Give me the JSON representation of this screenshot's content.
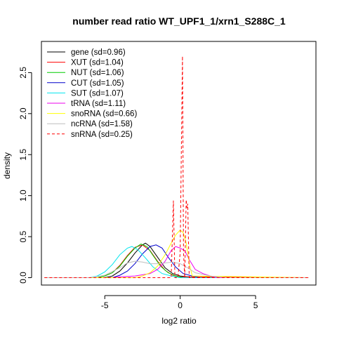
{
  "chart_data": {
    "type": "line",
    "title": "number read ratio WT_UPF1_1/xrn1_S288C_1",
    "xlabel": "log2 ratio",
    "ylabel": "density",
    "xlim": [
      -9.2,
      9.0
    ],
    "ylim": [
      -0.09,
      2.88
    ],
    "x_ticks": [
      -5,
      0,
      5
    ],
    "x_tick_labels": [
      "-5",
      "0",
      "5"
    ],
    "y_ticks": [
      0.0,
      0.5,
      1.0,
      1.5,
      2.0,
      2.5
    ],
    "y_tick_labels": [
      "0.0",
      "0.5",
      "1.0",
      "1.5",
      "2.0",
      "2.5"
    ],
    "grid": false,
    "legend_position": "top-left",
    "series": [
      {
        "name": "gene (sd=0.96)",
        "color": "#000000",
        "dash": false,
        "x": [
          -9,
          -5,
          -4.5,
          -4,
          -3.5,
          -3.0,
          -2.5,
          -2.3,
          -2.0,
          -1.5,
          -1.0,
          -0.5,
          0,
          0.5,
          1.0,
          8.5
        ],
        "y": [
          0,
          0,
          0.02,
          0.08,
          0.18,
          0.3,
          0.4,
          0.42,
          0.38,
          0.25,
          0.12,
          0.05,
          0.02,
          0.01,
          0,
          0
        ]
      },
      {
        "name": "XUT (sd=1.04)",
        "color": "#ff0000",
        "dash": false,
        "x": [
          -9,
          -5.5,
          -5,
          -4.5,
          -4,
          -3.5,
          -3.0,
          -2.5,
          -2.0,
          -1.5,
          -1.0,
          -0.5,
          0,
          8.5
        ],
        "y": [
          0,
          0,
          0.02,
          0.06,
          0.15,
          0.27,
          0.37,
          0.4,
          0.33,
          0.2,
          0.09,
          0.03,
          0.01,
          0
        ]
      },
      {
        "name": "NUT (sd=1.06)",
        "color": "#00cc00",
        "dash": false,
        "x": [
          -9,
          -5.5,
          -5,
          -4.5,
          -4,
          -3.5,
          -3.0,
          -2.6,
          -2.2,
          -1.8,
          -1.3,
          -0.8,
          -0.3,
          0.2,
          8.5
        ],
        "y": [
          0,
          0,
          0.02,
          0.06,
          0.14,
          0.26,
          0.36,
          0.41,
          0.38,
          0.27,
          0.14,
          0.06,
          0.02,
          0,
          0
        ]
      },
      {
        "name": "CUT (sd=1.05)",
        "color": "#0000cc",
        "dash": false,
        "x": [
          -9,
          -4.5,
          -4,
          -3.5,
          -3.0,
          -2.5,
          -2.0,
          -1.6,
          -1.2,
          -0.8,
          -0.3,
          0.2,
          0.8,
          1.3,
          8.5
        ],
        "y": [
          0,
          0,
          0.03,
          0.08,
          0.17,
          0.29,
          0.38,
          0.4,
          0.36,
          0.25,
          0.13,
          0.05,
          0.02,
          0,
          0
        ]
      },
      {
        "name": "SUT (sd=1.07)",
        "color": "#00e5ee",
        "dash": false,
        "x": [
          -9,
          -6,
          -5.5,
          -5,
          -4.5,
          -4,
          -3.5,
          -3.2,
          -2.8,
          -2.3,
          -1.8,
          -1.2,
          -0.6,
          0,
          8.5
        ],
        "y": [
          0,
          0,
          0.02,
          0.07,
          0.16,
          0.28,
          0.36,
          0.38,
          0.34,
          0.24,
          0.13,
          0.05,
          0.02,
          0,
          0
        ]
      },
      {
        "name": "tRNA (sd=1.11)",
        "color": "#ee00ee",
        "dash": false,
        "x": [
          -9,
          -4.5,
          -4,
          -3,
          -2,
          -1.5,
          -1.0,
          -0.6,
          -0.3,
          0,
          0.3,
          0.6,
          1.0,
          1.5,
          2.0,
          2.5,
          8.5
        ],
        "y": [
          0,
          0,
          0.01,
          0.02,
          0.05,
          0.1,
          0.2,
          0.33,
          0.38,
          0.36,
          0.33,
          0.22,
          0.1,
          0.05,
          0.02,
          0,
          0
        ]
      },
      {
        "name": "snoRNA (sd=0.66)",
        "color": "#ffff00",
        "dash": false,
        "x": [
          -9,
          -3.0,
          -2.5,
          -2.0,
          -1.5,
          -1.0,
          -0.6,
          -0.3,
          0,
          0.2,
          0.4,
          0.6,
          0.8,
          8.5
        ],
        "y": [
          0,
          0,
          0.02,
          0.06,
          0.14,
          0.28,
          0.42,
          0.52,
          0.58,
          0.55,
          0.42,
          0.18,
          0.02,
          0
        ]
      },
      {
        "name": "ncRNA (sd=1.58)",
        "color": "#bebebe",
        "dash": false,
        "x": [
          -9,
          -6,
          -5,
          -4,
          -3.5,
          -3,
          -2.5,
          -2.0,
          -1.5,
          -1.0,
          -0.5,
          0,
          0.5,
          1.0,
          2.0,
          3.0,
          8.5
        ],
        "y": [
          0,
          0,
          0.03,
          0.12,
          0.18,
          0.2,
          0.19,
          0.17,
          0.17,
          0.18,
          0.19,
          0.17,
          0.12,
          0.06,
          0.02,
          0,
          0
        ]
      },
      {
        "name": "snRNA (sd=0.25)",
        "color": "#ff0000",
        "dash": true,
        "x": [
          -9,
          -0.6,
          -0.45,
          -0.35,
          -0.25,
          -0.15,
          0.0,
          0.15,
          0.22,
          0.3,
          0.4,
          0.45,
          0.5,
          0.6,
          8.5
        ],
        "y": [
          0,
          0,
          0.94,
          0.0,
          0.0,
          0.0,
          0.3,
          2.7,
          0.3,
          0.0,
          0.95,
          0.85,
          0.9,
          0,
          0
        ]
      }
    ]
  }
}
